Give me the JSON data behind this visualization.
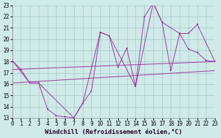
{
  "xlabel": "Windchill (Refroidissement éolien,°C)",
  "background_color": "#d0eaea",
  "grid_color": "#aacccc",
  "line_color": "#993399",
  "xlim": [
    0,
    23
  ],
  "ylim": [
    13,
    23
  ],
  "xtick_vals": [
    0,
    1,
    2,
    3,
    4,
    5,
    6,
    7,
    8,
    9,
    10,
    11,
    12,
    13,
    14,
    15,
    16,
    17,
    18,
    19,
    20,
    21,
    22,
    23
  ],
  "ytick_vals": [
    13,
    14,
    15,
    16,
    17,
    18,
    19,
    20,
    21,
    22,
    23
  ],
  "line1_x": [
    0,
    1,
    2,
    3,
    4,
    5,
    6,
    7,
    8,
    9,
    10,
    11,
    12,
    13,
    14,
    15,
    16,
    17,
    18,
    19,
    20,
    21,
    22,
    23
  ],
  "line1_y": [
    18.1,
    17.3,
    16.1,
    16.1,
    13.8,
    13.2,
    13.1,
    13.0,
    14.3,
    15.4,
    20.6,
    20.3,
    17.5,
    19.2,
    15.8,
    22.0,
    23.2,
    21.5,
    17.2,
    20.5,
    19.1,
    18.8,
    18.1,
    18.0
  ],
  "line2_x": [
    0,
    2,
    3,
    7,
    8,
    10,
    11,
    14,
    16,
    17,
    19,
    20,
    21,
    23
  ],
  "line2_y": [
    18.1,
    16.1,
    16.1,
    13.0,
    14.3,
    20.6,
    20.3,
    15.8,
    23.2,
    21.5,
    20.5,
    20.5,
    21.3,
    18.0
  ],
  "line3_x": [
    0,
    23
  ],
  "line3_y": [
    17.3,
    18.0
  ],
  "line4_x": [
    0,
    23
  ],
  "line4_y": [
    16.1,
    17.2
  ],
  "tick_fontsize": 5.5,
  "label_fontsize": 6.5
}
